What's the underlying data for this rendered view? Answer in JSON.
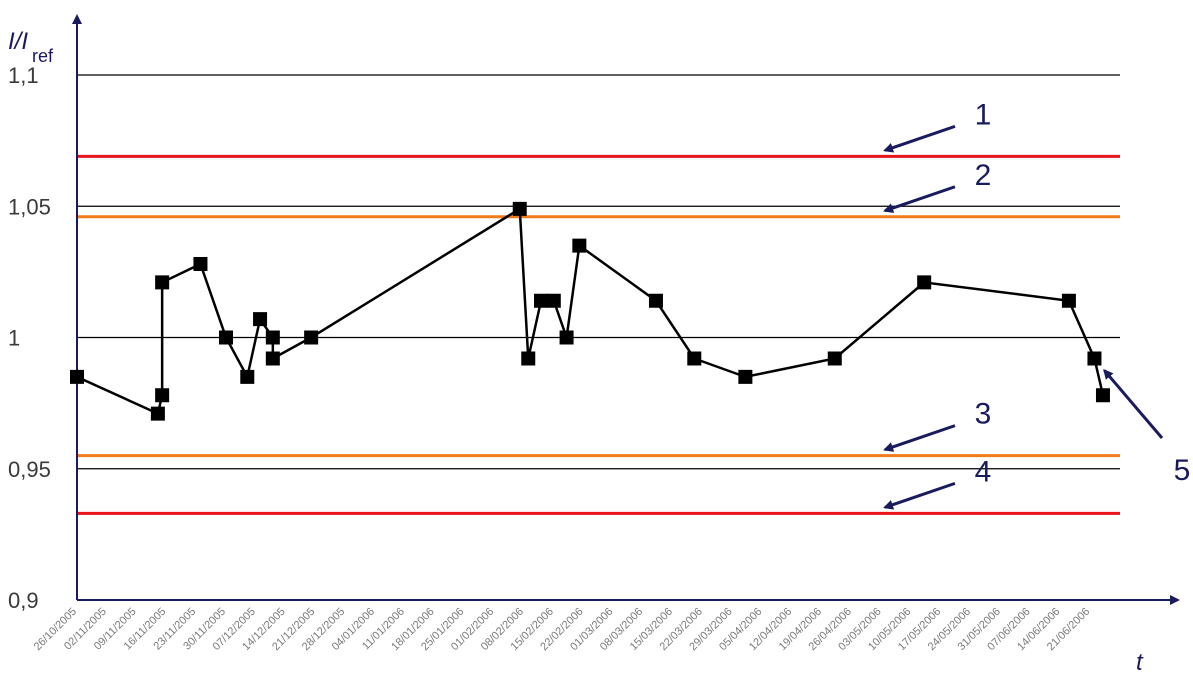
{
  "chart_data": {
    "type": "line",
    "ylabel_main": "I/I",
    "ylabel_sub": "ref",
    "xlabel": "t",
    "ylim": [
      0.9,
      1.1
    ],
    "y_ticks": [
      "1,1",
      "1,05",
      "1",
      "0,95",
      "0,9"
    ],
    "y_tick_values": [
      1.1,
      1.05,
      1.0,
      0.95,
      0.9
    ],
    "x_start": "2005-10-26",
    "x_end": "2006-06-28",
    "x_tick_labels": [
      "26/10/2005",
      "02/11/2005",
      "09/11/2005",
      "16/11/2005",
      "23/11/2005",
      "30/11/2005",
      "07/12/2005",
      "14/12/2005",
      "21/12/2005",
      "28/12/2005",
      "04/01/2006",
      "11/01/2006",
      "18/01/2006",
      "25/01/2006",
      "01/02/2006",
      "08/02/2006",
      "15/02/2006",
      "22/02/2006",
      "01/03/2006",
      "08/03/2006",
      "15/03/2006",
      "22/03/2006",
      "29/03/2006",
      "05/04/2006",
      "12/04/2006",
      "19/04/2006",
      "26/04/2006",
      "03/05/2006",
      "10/05/2006",
      "17/05/2006",
      "24/05/2006",
      "31/05/2006",
      "07/06/2006",
      "14/06/2006",
      "21/06/2006"
    ],
    "grid_lines": [
      1.1,
      1.05,
      1.0,
      0.95
    ],
    "limit_lines": [
      {
        "label": "1",
        "value": 1.069,
        "color": "#e8141b"
      },
      {
        "label": "2",
        "value": 1.046,
        "color": "#f07b1a"
      },
      {
        "label": "3",
        "value": 0.955,
        "color": "#f07b1a"
      },
      {
        "label": "4",
        "value": 0.933,
        "color": "#e8141b"
      }
    ],
    "series": [
      {
        "color": "#000000",
        "points": [
          [
            "2005-10-26",
            0.985
          ],
          [
            "2005-11-14",
            0.971
          ],
          [
            "2005-11-15",
            0.978
          ],
          [
            "2005-11-15",
            1.021
          ],
          [
            "2005-11-24",
            1.028
          ],
          [
            "2005-11-30",
            1.0
          ],
          [
            "2005-12-05",
            0.985
          ],
          [
            "2005-12-08",
            1.007
          ],
          [
            "2005-12-11",
            1.0
          ],
          [
            "2005-12-11",
            0.992
          ],
          [
            "2005-12-20",
            1.0
          ],
          [
            "2006-02-07",
            1.049
          ],
          [
            "2006-02-09",
            0.992
          ],
          [
            "2006-02-12",
            1.014
          ],
          [
            "2006-02-15",
            1.014
          ],
          [
            "2006-02-18",
            1.0
          ],
          [
            "2006-02-21",
            1.035
          ],
          [
            "2006-03-11",
            1.014
          ],
          [
            "2006-03-20",
            0.992
          ],
          [
            "2006-04-01",
            0.985
          ],
          [
            "2006-04-22",
            0.992
          ],
          [
            "2006-05-13",
            1.021
          ],
          [
            "2006-06-16",
            1.014
          ],
          [
            "2006-06-22",
            0.992
          ],
          [
            "2006-06-24",
            0.978
          ]
        ]
      }
    ],
    "annotations": [
      {
        "label": "5",
        "target_index": 23
      }
    ],
    "grid_color": "#000000",
    "axis_color": "#1a1a5e"
  }
}
